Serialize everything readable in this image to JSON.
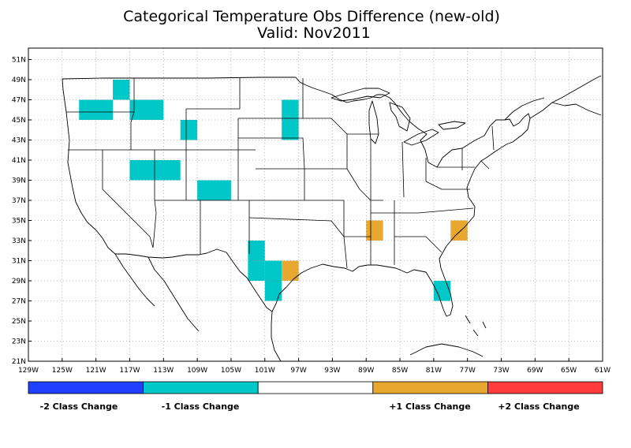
{
  "title": "Categorical Temperature Obs Difference (new-old)",
  "subtitle": "Valid: Nov2011",
  "map": {
    "lon_range": [
      -129,
      -61
    ],
    "lat_range": [
      21,
      52
    ],
    "lat_ticks": [
      "21N",
      "23N",
      "25N",
      "27N",
      "29N",
      "31N",
      "33N",
      "35N",
      "37N",
      "39N",
      "41N",
      "43N",
      "45N",
      "47N",
      "49N",
      "51N"
    ],
    "lon_ticks": [
      "129W",
      "125W",
      "121W",
      "117W",
      "113W",
      "109W",
      "105W",
      "101W",
      "97W",
      "93W",
      "89W",
      "85W",
      "81W",
      "77W",
      "73W",
      "69W",
      "65W",
      "61W"
    ],
    "grid": "dotted"
  },
  "cells": [
    {
      "lon0": -123,
      "lat0": 45,
      "lon1": -119,
      "lat1": 47,
      "class": -1
    },
    {
      "lon0": -119,
      "lat0": 47,
      "lon1": -117,
      "lat1": 49,
      "class": -1
    },
    {
      "lon0": -117,
      "lat0": 45,
      "lon1": -113,
      "lat1": 47,
      "class": -1
    },
    {
      "lon0": -111,
      "lat0": 43,
      "lon1": -109,
      "lat1": 45,
      "class": -1
    },
    {
      "lon0": -99,
      "lat0": 43,
      "lon1": -97,
      "lat1": 47,
      "class": -1
    },
    {
      "lon0": -117,
      "lat0": 39,
      "lon1": -111,
      "lat1": 41,
      "class": -1
    },
    {
      "lon0": -109,
      "lat0": 37,
      "lon1": -105,
      "lat1": 39,
      "class": -1
    },
    {
      "lon0": -103,
      "lat0": 29,
      "lon1": -101,
      "lat1": 33,
      "class": -1
    },
    {
      "lon0": -101,
      "lat0": 27,
      "lon1": -99,
      "lat1": 31,
      "class": -1
    },
    {
      "lon0": -81,
      "lat0": 27,
      "lon1": -79,
      "lat1": 29,
      "class": -1
    },
    {
      "lon0": -99,
      "lat0": 29,
      "lon1": -97,
      "lat1": 31,
      "class": 1
    },
    {
      "lon0": -89,
      "lat0": 33,
      "lon1": -87,
      "lat1": 35,
      "class": 1
    },
    {
      "lon0": -79,
      "lat0": 33,
      "lon1": -77,
      "lat1": 35,
      "class": 1
    }
  ],
  "legend": {
    "segments": [
      {
        "color": "#2040ff"
      },
      {
        "color": "#00c8c8"
      },
      {
        "color": "#ffffff"
      },
      {
        "color": "#e8a830"
      },
      {
        "color": "#ff3c3c"
      }
    ],
    "labels": [
      "-2 Class Change",
      "-1 Class Change",
      "+1 Class Change",
      "+2 Class Change"
    ]
  },
  "colors": {
    "minus2": "#2040ff",
    "minus1": "#00c8c8",
    "neutral": "#ffffff",
    "plus1": "#e8a830",
    "plus2": "#ff3c3c"
  }
}
